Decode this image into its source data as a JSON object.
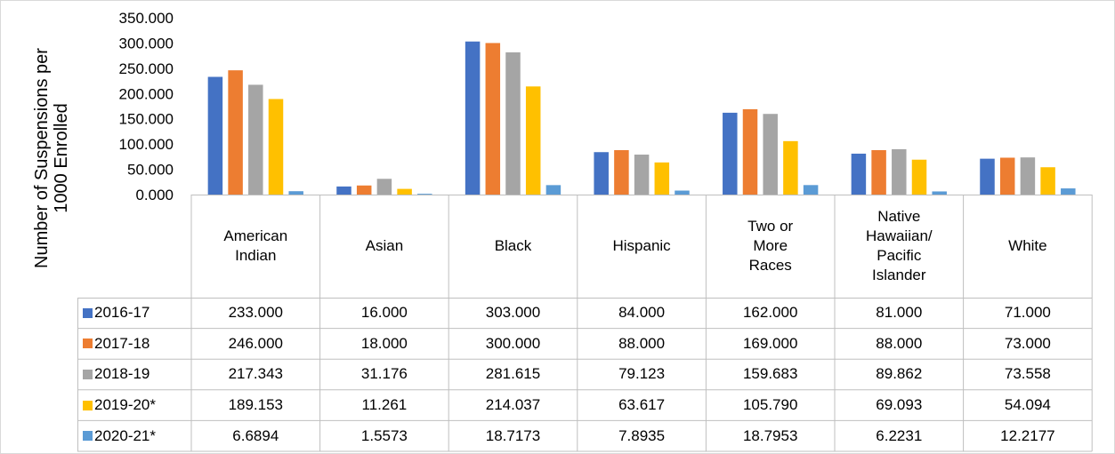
{
  "chart_data": {
    "type": "bar",
    "ylabel": "Number of Suspensions per 1000 Enrolled",
    "ylim": [
      0,
      350
    ],
    "yticks": [
      "0.000",
      "50.000",
      "100.000",
      "150.000",
      "200.000",
      "250.000",
      "300.000",
      "350.000"
    ],
    "grid": false,
    "legend_placement": "data table",
    "categories": [
      "American\nIndian",
      "Asian",
      "Black",
      "Hispanic",
      "Two or\nMore\nRaces",
      "Native\nHawaiian/\nPacific\nIslander",
      "White"
    ],
    "series": [
      {
        "name": "2016-17",
        "color": "#4472C4",
        "values": [
          233.0,
          16.0,
          303.0,
          84.0,
          162.0,
          81.0,
          71.0
        ],
        "labels": [
          "233.000",
          "16.000",
          "303.000",
          "84.000",
          "162.000",
          "81.000",
          "71.000"
        ]
      },
      {
        "name": "2017-18",
        "color": "#ED7D31",
        "values": [
          246.0,
          18.0,
          300.0,
          88.0,
          169.0,
          88.0,
          73.0
        ],
        "labels": [
          "246.000",
          "18.000",
          "300.000",
          "88.000",
          "169.000",
          "88.000",
          "73.000"
        ]
      },
      {
        "name": "2018-19",
        "color": "#A5A5A5",
        "values": [
          217.343,
          31.176,
          281.615,
          79.123,
          159.683,
          89.862,
          73.558
        ],
        "labels": [
          "217.343",
          "31.176",
          "281.615",
          "79.123",
          "159.683",
          "89.862",
          "73.558"
        ]
      },
      {
        "name": "2019-20*",
        "color": "#FFC000",
        "values": [
          189.153,
          11.261,
          214.037,
          63.617,
          105.79,
          69.093,
          54.094
        ],
        "labels": [
          "189.153",
          "11.261",
          "214.037",
          "63.617",
          "105.790",
          "69.093",
          "54.094"
        ]
      },
      {
        "name": "2020-21*",
        "color": "#5B9BD5",
        "values": [
          6.6894,
          1.5573,
          18.7173,
          7.8935,
          18.7953,
          6.2231,
          12.2177
        ],
        "labels": [
          "6.6894",
          "1.5573",
          "18.7173",
          "7.8935",
          "18.7953",
          "6.2231",
          "12.2177"
        ]
      }
    ]
  }
}
